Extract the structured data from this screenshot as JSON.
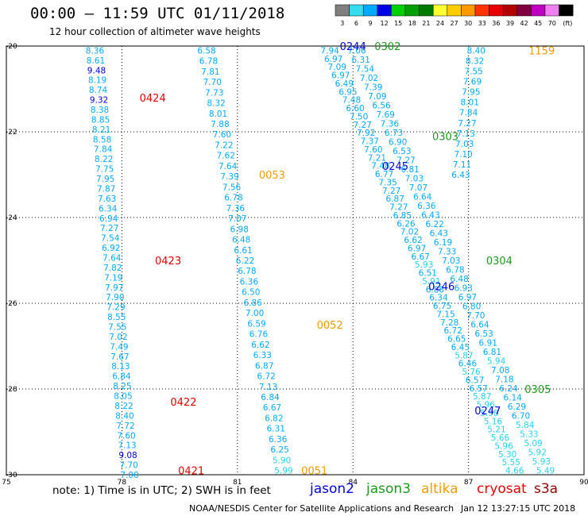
{
  "title": "00:00 – 11:59 UTC 01/11/2018",
  "subtitle": "12 hour collection of altimeter wave heights",
  "note": "note:  1) Time is in UTC;  2) SWH is in feet",
  "credit": "NOAA/NESDIS Center for Satellite Applications and Research",
  "stamp": "Jan 12 13:27:15 UTC 2018",
  "legend_entries": [
    {
      "label": "jason2",
      "color": "#0000e6"
    },
    {
      "label": "jason3",
      "color": "#1a9a1a"
    },
    {
      "label": "altika",
      "color": "#f59a00"
    },
    {
      "label": "cryosat",
      "color": "#e60000"
    },
    {
      "label": "s3a",
      "color": "#990000"
    }
  ],
  "colorbar": {
    "ticks": [
      "3",
      "6",
      "9",
      "12",
      "15",
      "18",
      "21",
      "24",
      "27",
      "30",
      "33",
      "36",
      "39",
      "42",
      "45",
      "70",
      "(ft)"
    ],
    "colors": [
      "#7f7f7f",
      "#33ddee",
      "#00aaff",
      "#0000e6",
      "#00d000",
      "#00a000",
      "#007a00",
      "#ffff33",
      "#ffcc00",
      "#ff9900",
      "#ff3300",
      "#e60000",
      "#b30000",
      "#800040",
      "#c000c0",
      "#f080f0",
      "#000000"
    ]
  },
  "chart_data": {
    "type": "scatter",
    "title": "00:00 – 11:59 UTC 01/11/2018",
    "subtitle": "12 hour collection of altimeter wave heights",
    "xlim": [
      75,
      90
    ],
    "ylim": [
      -30,
      -20
    ],
    "xticks": [
      "75",
      "78",
      "81",
      "84",
      "87",
      "90"
    ],
    "yticks": [
      "-20",
      "-22",
      "-24",
      "-26",
      "-28",
      "-30"
    ],
    "tracks": [
      {
        "name": "cryosat",
        "start": [
          77.3,
          -20.1
        ],
        "end": [
          78.2,
          -30.0
        ],
        "values": [
          "8.36",
          "8.61",
          "9.48",
          "8.19",
          "8.74",
          "9.32",
          "8.38",
          "8.85",
          "8.21",
          "8.58",
          "7.84",
          "8.22",
          "7.75",
          "7.95",
          "7.87",
          "7.63",
          "6.34",
          "6.94",
          "7.27",
          "7.54",
          "6.92",
          "7.64",
          "7.82",
          "7.19",
          "7.97",
          "7.90",
          "7.29",
          "8.55",
          "7.55",
          "7.02",
          "7.49",
          "7.67",
          "8.13",
          "6.84",
          "8.25",
          "8.05",
          "8.22",
          "8.40",
          "7.72",
          "7.60",
          "7.13",
          "9.08",
          "7.70",
          "7.00"
        ],
        "times": [
          {
            "label": "0424",
            "lat": -21.2,
            "lon": 78.8
          },
          {
            "label": "0423",
            "lat": -25.0,
            "lon": 79.2
          },
          {
            "label": "0422",
            "lat": -28.3,
            "lon": 79.6
          },
          {
            "label": "0421",
            "lat": -29.9,
            "lon": 79.8
          }
        ]
      },
      {
        "name": "altika",
        "start": [
          80.2,
          -20.1
        ],
        "end": [
          82.2,
          -29.9
        ],
        "values": [
          "6.58",
          "6.78",
          "7.81",
          "7.70",
          "7.73",
          "8.32",
          "8.01",
          "7.88",
          "7.60",
          "7.22",
          "7.62",
          "7.64",
          "7.39",
          "7.56",
          "6.78",
          "7.36",
          "7.07",
          "6.98",
          "6.48",
          "6.61",
          "6.22",
          "6.78",
          "6.36",
          "6.50",
          "6.86",
          "7.00",
          "6.59",
          "6.76",
          "6.62",
          "6.33",
          "6.87",
          "6.72",
          "7.13",
          "6.84",
          "6.67",
          "6.82",
          "6.31",
          "6.36",
          "6.25",
          "5.90",
          "5.99"
        ],
        "times": [
          {
            "label": "0053",
            "lat": -23.0,
            "lon": 81.9
          },
          {
            "label": "0052",
            "lat": -26.5,
            "lon": 83.4
          },
          {
            "label": "0051",
            "lat": -29.9,
            "lon": 83.0
          }
        ]
      },
      {
        "name": "jason2-a",
        "start": [
          83.4,
          -20.1
        ],
        "end": [
          88.2,
          -29.9
        ],
        "values": [
          "7.94",
          "6.97",
          "7.09",
          "6.97",
          "6.49",
          "6.95",
          "7.48",
          "6.60",
          "7.50",
          "7.27",
          "7.92",
          "7.37",
          "7.60",
          "7.21",
          "7.48",
          "6.77",
          "7.35",
          "7.27",
          "6.87",
          "7.27",
          "6.85",
          "6.26",
          "7.02",
          "6.62",
          "6.97",
          "6.67",
          "5.93",
          "6.51",
          "5.91",
          "6.88",
          "6.34",
          "6.75",
          "7.15",
          "7.28",
          "6.72",
          "6.65",
          "6.45",
          "5.87",
          "6.46",
          "5.76",
          "6.57",
          "6.57",
          "5.87",
          "5.96",
          "5.98",
          "5.16",
          "5.21",
          "5.66",
          "5.96",
          "5.30",
          "5.55",
          "4.66"
        ],
        "times": []
      },
      {
        "name": "jason2-b",
        "start": [
          84.1,
          -20.1
        ],
        "end": [
          89.0,
          -29.9
        ],
        "values": [
          "7.06",
          "6.31",
          "7.54",
          "7.02",
          "7.39",
          "7.09",
          "6.56",
          "7.69",
          "7.36",
          "6.73",
          "6.90",
          "6.53",
          "7.27",
          "6.81",
          "7.03",
          "7.07",
          "6.64",
          "6.36",
          "6.43",
          "6.22",
          "6.43",
          "6.19",
          "7.33",
          "7.03",
          "6.78",
          "6.48",
          "6.93",
          "6.97",
          "6.80",
          "7.70",
          "6.64",
          "6.53",
          "6.91",
          "6.81",
          "5.94",
          "7.08",
          "7.18",
          "6.24",
          "6.14",
          "6.29",
          "6.70",
          "5.84",
          "5.33",
          "5.09",
          "5.92",
          "5.93",
          "5.49"
        ],
        "times": [
          {
            "label": "0244",
            "lat": -20.0,
            "lon": 84.0
          },
          {
            "label": "0245",
            "lat": -22.8,
            "lon": 85.1
          },
          {
            "label": "0246",
            "lat": -25.6,
            "lon": 86.3
          },
          {
            "label": "0247",
            "lat": -28.5,
            "lon": 87.5
          }
        ]
      },
      {
        "name": "jason3",
        "start": [
          87.2,
          -20.1
        ],
        "end": [
          86.8,
          -23.0
        ],
        "values": [
          "8.40",
          "8.32",
          "7.55",
          "7.69",
          "7.95",
          "8.01",
          "7.84",
          "7.27",
          "7.13",
          "7.03",
          "7.10",
          "7.11",
          "6.43"
        ],
        "times": [
          {
            "label": "0302",
            "lat": -20.0,
            "lon": 84.9
          },
          {
            "label": "0303",
            "lat": -22.1,
            "lon": 86.4
          },
          {
            "label": "0304",
            "lat": -25.0,
            "lon": 87.8
          },
          {
            "label": "0305",
            "lat": -28.0,
            "lon": 88.8
          }
        ]
      },
      {
        "name": "altika-2",
        "start": [
          87.2,
          -20.1
        ],
        "end": [
          87.2,
          -20.1
        ],
        "values": [],
        "times": [
          {
            "label": "1159",
            "lat": -20.1,
            "lon": 88.9
          }
        ]
      }
    ]
  }
}
